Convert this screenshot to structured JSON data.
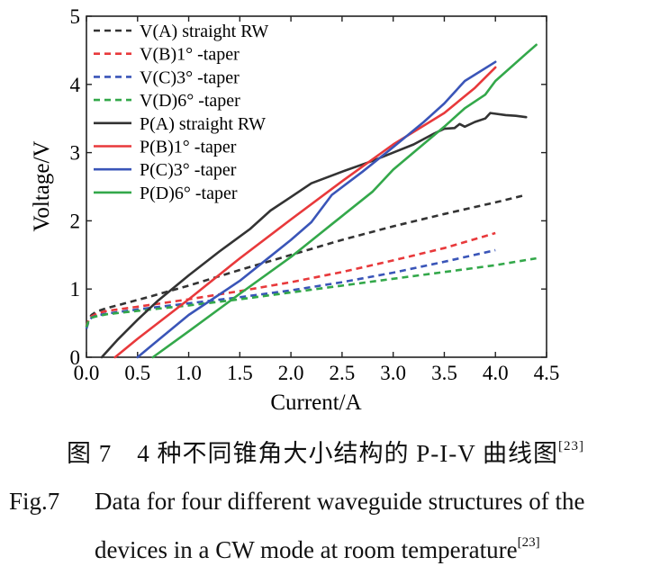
{
  "chart_data": {
    "type": "line",
    "xlabel": "Current/A",
    "ylabel": "Voltage/V",
    "xlim": [
      0,
      4.5
    ],
    "ylim": [
      0,
      5
    ],
    "xticks": [
      "0.0",
      "0.5",
      "1.0",
      "1.5",
      "2.0",
      "2.5",
      "3.0",
      "3.5",
      "4.0",
      "4.5"
    ],
    "yticks": [
      "0",
      "1",
      "2",
      "3",
      "4",
      "5"
    ],
    "legend_position": "top-left",
    "series": [
      {
        "name": "V(A) straight RW",
        "color": "#333333",
        "dash": true,
        "x": [
          0.0,
          0.02,
          0.05,
          0.1,
          0.2,
          0.4,
          0.6,
          1.0,
          1.5,
          2.0,
          2.5,
          3.0,
          3.5,
          4.0,
          4.3
        ],
        "y": [
          0.45,
          0.55,
          0.62,
          0.67,
          0.72,
          0.8,
          0.88,
          1.05,
          1.28,
          1.5,
          1.72,
          1.92,
          2.1,
          2.27,
          2.38
        ]
      },
      {
        "name": "V(B)1° -taper",
        "color": "#e8393b",
        "dash": true,
        "x": [
          0.0,
          0.02,
          0.05,
          0.1,
          0.2,
          0.5,
          1.0,
          1.5,
          2.0,
          2.5,
          3.0,
          3.5,
          4.0
        ],
        "y": [
          0.45,
          0.55,
          0.6,
          0.64,
          0.68,
          0.74,
          0.85,
          0.97,
          1.1,
          1.25,
          1.42,
          1.6,
          1.82
        ]
      },
      {
        "name": "V(C)3° -taper",
        "color": "#3a55b8",
        "dash": true,
        "x": [
          0.0,
          0.02,
          0.05,
          0.1,
          0.2,
          0.5,
          1.0,
          1.5,
          2.0,
          2.5,
          3.0,
          3.5,
          4.0
        ],
        "y": [
          0.42,
          0.52,
          0.58,
          0.61,
          0.64,
          0.7,
          0.79,
          0.88,
          0.98,
          1.1,
          1.24,
          1.4,
          1.57
        ]
      },
      {
        "name": "V(D)6° -taper",
        "color": "#33a84a",
        "dash": true,
        "x": [
          0.0,
          0.02,
          0.05,
          0.1,
          0.2,
          0.5,
          1.0,
          1.5,
          2.0,
          2.5,
          3.0,
          3.5,
          4.0,
          4.4
        ],
        "y": [
          0.44,
          0.53,
          0.58,
          0.6,
          0.63,
          0.68,
          0.76,
          0.85,
          0.95,
          1.05,
          1.15,
          1.25,
          1.35,
          1.45
        ]
      },
      {
        "name": "P(A) straight RW",
        "color": "#333333",
        "dash": false,
        "x": [
          0.15,
          0.3,
          0.5,
          0.7,
          1.0,
          1.3,
          1.6,
          1.8,
          2.0,
          2.2,
          2.5,
          2.8,
          3.0,
          3.2,
          3.4,
          3.5,
          3.6,
          3.65,
          3.7,
          3.8,
          3.9,
          3.95,
          4.0,
          4.1,
          4.2,
          4.3
        ],
        "y": [
          0.0,
          0.25,
          0.55,
          0.83,
          1.2,
          1.55,
          1.88,
          2.15,
          2.35,
          2.55,
          2.72,
          2.88,
          3.0,
          3.12,
          3.28,
          3.35,
          3.36,
          3.42,
          3.38,
          3.45,
          3.5,
          3.58,
          3.57,
          3.55,
          3.54,
          3.52
        ]
      },
      {
        "name": "P(B)1° -taper",
        "color": "#e8393b",
        "dash": false,
        "x": [
          0.28,
          0.5,
          1.0,
          1.5,
          2.0,
          2.5,
          3.0,
          3.5,
          3.8,
          4.0
        ],
        "y": [
          0.0,
          0.27,
          0.85,
          1.45,
          2.02,
          2.58,
          3.12,
          3.58,
          3.95,
          4.25
        ]
      },
      {
        "name": "P(C)3° -taper",
        "color": "#3a55b8",
        "dash": false,
        "x": [
          0.5,
          0.7,
          1.0,
          1.5,
          1.8,
          2.0,
          2.2,
          2.4,
          2.7,
          3.0,
          3.3,
          3.5,
          3.7,
          4.0
        ],
        "y": [
          0.0,
          0.25,
          0.62,
          1.12,
          1.48,
          1.72,
          1.98,
          2.38,
          2.72,
          3.08,
          3.45,
          3.72,
          4.05,
          4.33
        ]
      },
      {
        "name": "P(D)6° -taper",
        "color": "#33a84a",
        "dash": false,
        "x": [
          0.65,
          1.0,
          1.5,
          2.0,
          2.4,
          2.8,
          3.0,
          3.5,
          3.7,
          3.9,
          4.0,
          4.3,
          4.4
        ],
        "y": [
          0.0,
          0.38,
          0.93,
          1.47,
          1.95,
          2.43,
          2.75,
          3.38,
          3.65,
          3.85,
          4.05,
          4.45,
          4.58
        ]
      }
    ]
  },
  "caption": {
    "cn_text": "图 7　4 种不同锥角大小结构的 P-I-V 曲线图",
    "cn_ref": "[23]",
    "en_fig": "Fig.7",
    "en_line1": "Data for four different waveguide structures of the",
    "en_line2": "devices in a CW mode at room temperature",
    "en_ref": "[23]"
  }
}
